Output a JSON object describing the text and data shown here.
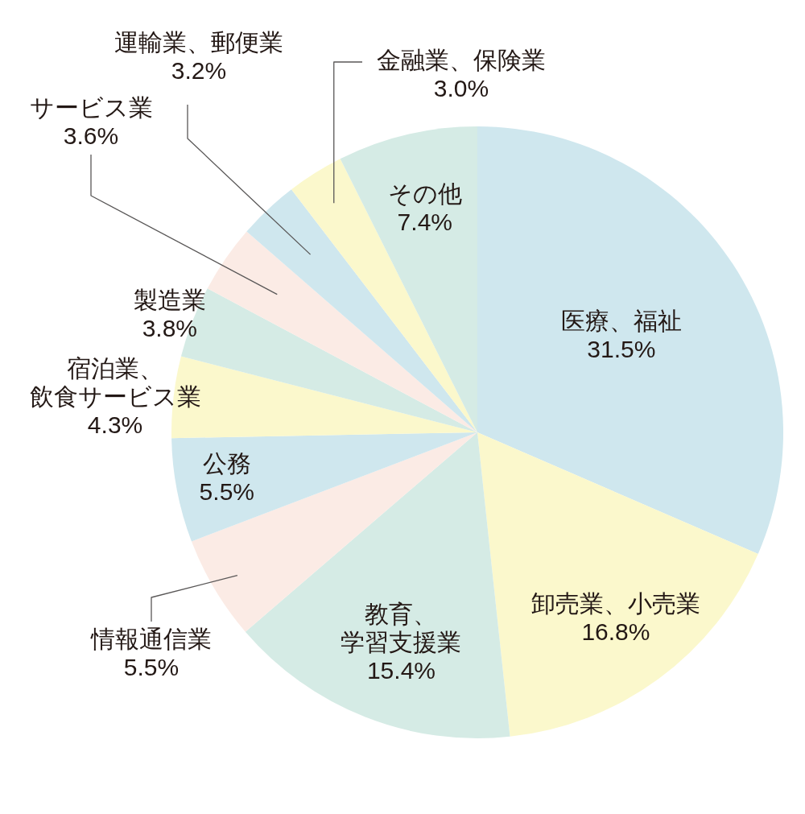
{
  "chart_data": {
    "type": "pie",
    "categories": [
      "医療、福祉",
      "卸売業、小売業",
      "教育、学習支援業",
      "情報通信業",
      "公務",
      "宿泊業、飲食サービス業",
      "製造業",
      "サービス業",
      "運輸業、郵便業",
      "金融業、保険業",
      "その他"
    ],
    "values": [
      31.5,
      16.8,
      15.4,
      5.5,
      5.5,
      4.3,
      3.8,
      3.6,
      3.2,
      3.0,
      7.4
    ],
    "value_labels": [
      "31.5%",
      "16.8%",
      "15.4%",
      "5.5%",
      "5.5%",
      "4.3%",
      "3.8%",
      "3.6%",
      "3.2%",
      "3.0%",
      "7.4%"
    ],
    "colors": [
      "#cfe7ee",
      "#fbf8cc",
      "#d5ebe5",
      "#fbebe5",
      "#cfe7ee",
      "#fbf8cc",
      "#d5ebe5",
      "#fbebe5",
      "#cfe7ee",
      "#fbf8cc",
      "#d5ebe5"
    ]
  }
}
